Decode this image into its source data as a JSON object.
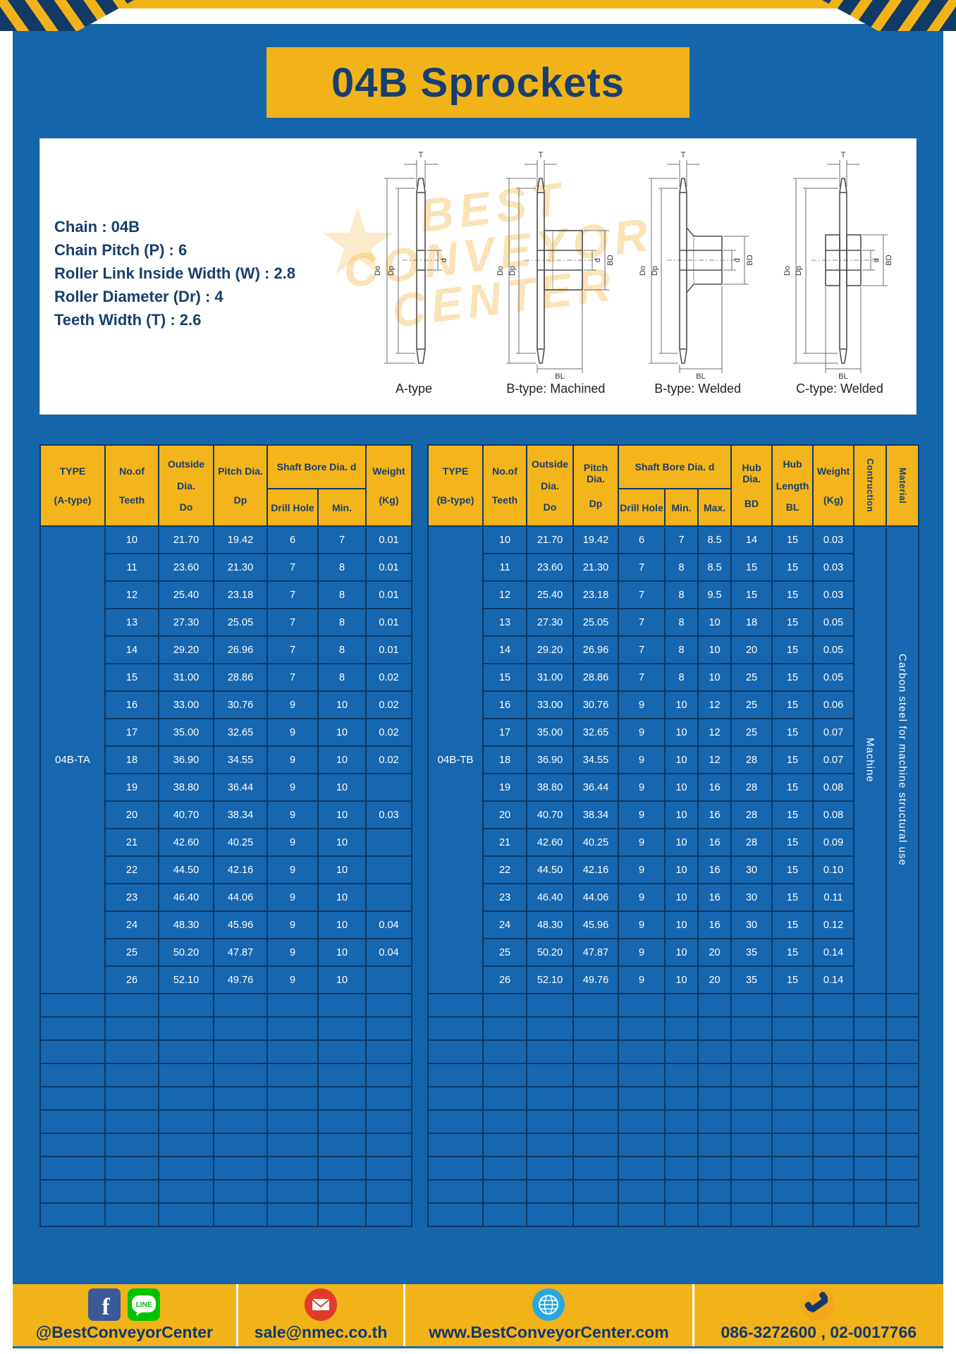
{
  "page": {
    "title": "04B Sprockets"
  },
  "colors": {
    "blue": "#1565ab",
    "yellow": "#f2b319",
    "navy": "#173f6e"
  },
  "specs": {
    "lines": [
      "Chain : 04B",
      "Chain Pitch (P) : 6",
      "Roller Link Inside Width (W) : 2.8",
      "Roller Diameter (Dr) : 4",
      "Teeth Width (T) : 2.6"
    ]
  },
  "drawings": {
    "watermark": [
      "BEST",
      "CONVEYOR",
      "CENTER"
    ],
    "watermark_star": "★",
    "labels": [
      "A-type",
      "B-type: Machined",
      "B-type: Welded",
      "C-type: Welded"
    ],
    "dim": {
      "T": "T",
      "Do": "Do",
      "Dp": "Dp",
      "d": "d",
      "BD": "BD",
      "BL": "BL"
    }
  },
  "table_a": {
    "header": {
      "type1": "TYPE",
      "type2": "(A-type)",
      "teeth1": "No.of",
      "teeth2": "Teeth",
      "out1": "Outside",
      "out2": "Dia.",
      "out3": "Do",
      "pitch1": "Pitch Dia.",
      "pitch2": "Dp",
      "shaft": "Shaft Bore Dia. d",
      "drill": "Drill Hole",
      "min": "Min.",
      "weight1": "Weight",
      "weight2": "(Kg)"
    },
    "lead": [
      {
        "text": "04B-TA"
      }
    ],
    "trail": [],
    "rows": [
      [
        "10",
        "21.70",
        "19.42",
        "6",
        "7",
        "0.01"
      ],
      [
        "11",
        "23.60",
        "21.30",
        "7",
        "8",
        "0.01"
      ],
      [
        "12",
        "25.40",
        "23.18",
        "7",
        "8",
        "0.01"
      ],
      [
        "13",
        "27.30",
        "25.05",
        "7",
        "8",
        "0.01"
      ],
      [
        "14",
        "29.20",
        "26.96",
        "7",
        "8",
        "0.01"
      ],
      [
        "15",
        "31.00",
        "28.86",
        "7",
        "8",
        "0.02"
      ],
      [
        "16",
        "33.00",
        "30.76",
        "9",
        "10",
        "0.02"
      ],
      [
        "17",
        "35.00",
        "32.65",
        "9",
        "10",
        "0.02"
      ],
      [
        "18",
        "36.90",
        "34.55",
        "9",
        "10",
        "0.02"
      ],
      [
        "19",
        "38.80",
        "36.44",
        "9",
        "10",
        ""
      ],
      [
        "20",
        "40.70",
        "38.34",
        "9",
        "10",
        "0.03"
      ],
      [
        "21",
        "42.60",
        "40.25",
        "9",
        "10",
        ""
      ],
      [
        "22",
        "44.50",
        "42.16",
        "9",
        "10",
        ""
      ],
      [
        "23",
        "46.40",
        "44.06",
        "9",
        "10",
        ""
      ],
      [
        "24",
        "48.30",
        "45.96",
        "9",
        "10",
        "0.04"
      ],
      [
        "25",
        "50.20",
        "47.87",
        "9",
        "10",
        "0.04"
      ],
      [
        "26",
        "52.10",
        "49.76",
        "9",
        "10",
        ""
      ]
    ],
    "empty_rows": 10,
    "empty_cols": 7
  },
  "table_b": {
    "header": {
      "type1": "TYPE",
      "type2": "(B-type)",
      "teeth1": "No.of",
      "teeth2": "Teeth",
      "out1": "Outside",
      "out2": "Dia.",
      "out3": "Do",
      "pitch1": "Pitch Dia.",
      "pitch2": "Dp",
      "shaft": "Shaft Bore Dia. d",
      "drill": "Drill Hole",
      "min": "Min.",
      "max": "Max.",
      "hubdia1": "Hub Dia.",
      "hubdia2": "BD",
      "hublen1": "Hub",
      "hublen2": "Length",
      "hublen3": "BL",
      "weight1": "Weight",
      "weight2": "(Kg)",
      "construction": "Contruction",
      "material": "Material"
    },
    "lead": [
      {
        "text": "04B-TB"
      }
    ],
    "trail": [
      {
        "text": "Machine",
        "vertical": true
      },
      {
        "text": "Carbon steel for machine structural use",
        "vertical": true
      }
    ],
    "rows": [
      [
        "10",
        "21.70",
        "19.42",
        "6",
        "7",
        "8.5",
        "14",
        "15",
        "0.03"
      ],
      [
        "11",
        "23.60",
        "21.30",
        "7",
        "8",
        "8.5",
        "15",
        "15",
        "0.03"
      ],
      [
        "12",
        "25.40",
        "23.18",
        "7",
        "8",
        "9.5",
        "15",
        "15",
        "0.03"
      ],
      [
        "13",
        "27.30",
        "25.05",
        "7",
        "8",
        "10",
        "18",
        "15",
        "0.05"
      ],
      [
        "14",
        "29.20",
        "26.96",
        "7",
        "8",
        "10",
        "20",
        "15",
        "0.05"
      ],
      [
        "15",
        "31.00",
        "28.86",
        "7",
        "8",
        "10",
        "25",
        "15",
        "0.05"
      ],
      [
        "16",
        "33.00",
        "30.76",
        "9",
        "10",
        "12",
        "25",
        "15",
        "0.06"
      ],
      [
        "17",
        "35.00",
        "32.65",
        "9",
        "10",
        "12",
        "25",
        "15",
        "0.07"
      ],
      [
        "18",
        "36.90",
        "34.55",
        "9",
        "10",
        "12",
        "28",
        "15",
        "0.07"
      ],
      [
        "19",
        "38.80",
        "36.44",
        "9",
        "10",
        "16",
        "28",
        "15",
        "0.08"
      ],
      [
        "20",
        "40.70",
        "38.34",
        "9",
        "10",
        "16",
        "28",
        "15",
        "0.08"
      ],
      [
        "21",
        "42.60",
        "40.25",
        "9",
        "10",
        "16",
        "28",
        "15",
        "0.09"
      ],
      [
        "22",
        "44.50",
        "42.16",
        "9",
        "10",
        "16",
        "30",
        "15",
        "0.10"
      ],
      [
        "23",
        "46.40",
        "44.06",
        "9",
        "10",
        "16",
        "30",
        "15",
        "0.11"
      ],
      [
        "24",
        "48.30",
        "45.96",
        "9",
        "10",
        "16",
        "30",
        "15",
        "0.12"
      ],
      [
        "25",
        "50.20",
        "47.87",
        "9",
        "10",
        "20",
        "35",
        "15",
        "0.14"
      ],
      [
        "26",
        "52.10",
        "49.76",
        "9",
        "10",
        "20",
        "35",
        "15",
        "0.14"
      ]
    ],
    "empty_rows": 10,
    "empty_cols": 12
  },
  "footer": {
    "facebook_glyph": "f",
    "line_label": "LINE",
    "facebook_line_text": "@BestConveyorCenter",
    "email_text": "sale@nmec.co.th",
    "web_text": "www.BestConveyorCenter.com",
    "phone_text": "086-3272600 , 02-0017766"
  }
}
